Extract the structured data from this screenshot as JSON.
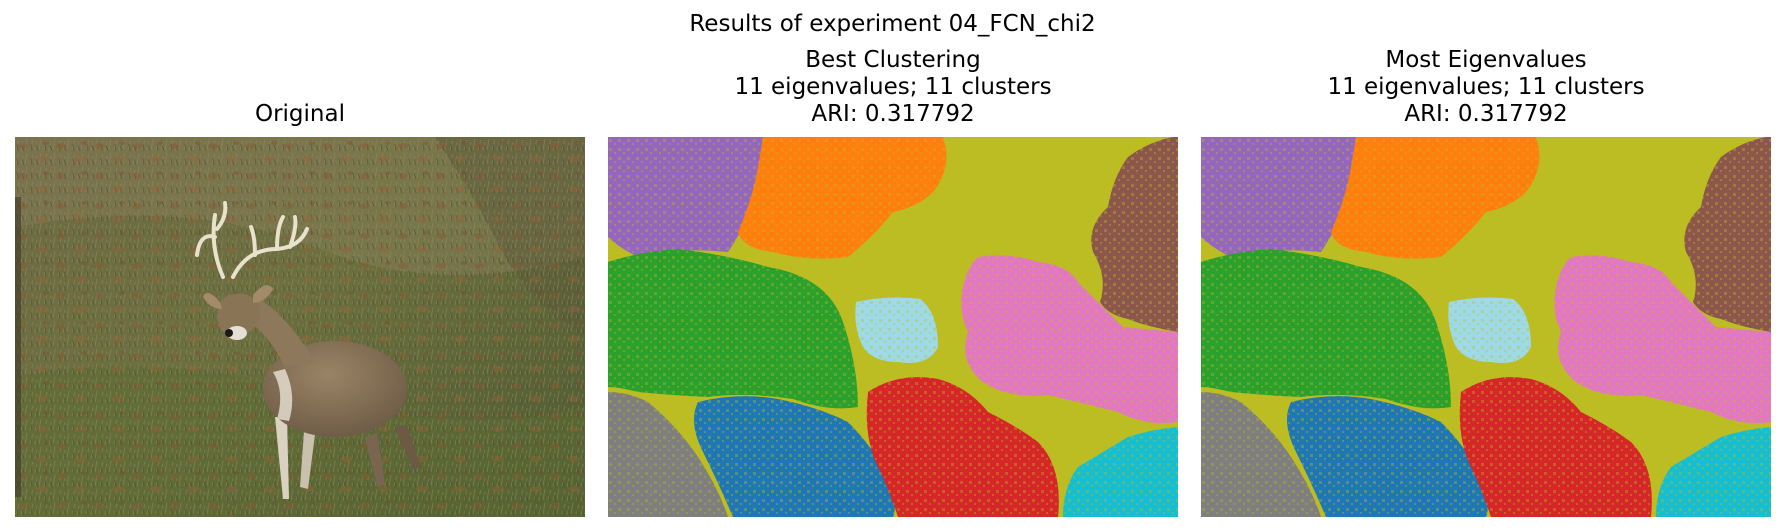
{
  "figure": {
    "suptitle": "Results of experiment 04_FCN_chi2"
  },
  "panels": [
    {
      "title_lines": [
        "Original"
      ],
      "content": "photo-deer"
    },
    {
      "title_lines": [
        "Best Clustering",
        "11 eigenvalues; 11 clusters",
        "ARI: 0.317792"
      ],
      "content": "segmentation",
      "eigenvalues": 11,
      "clusters": 11,
      "ari": 0.317792
    },
    {
      "title_lines": [
        "Most Eigenvalues",
        "11 eigenvalues; 11 clusters",
        "ARI: 0.317792"
      ],
      "content": "segmentation",
      "eigenvalues": 11,
      "clusters": 11,
      "ari": 0.317792
    }
  ],
  "palette": {
    "olive": "#bcbd22",
    "purple": "#9467bd",
    "orange": "#ff7f0e",
    "brown": "#8c564b",
    "green": "#2ca02c",
    "light_blue": "#9edae5",
    "pink": "#e377c2",
    "gray": "#7f7f7f",
    "blue": "#1f77b4",
    "red": "#d62728",
    "cyan": "#17becf"
  }
}
